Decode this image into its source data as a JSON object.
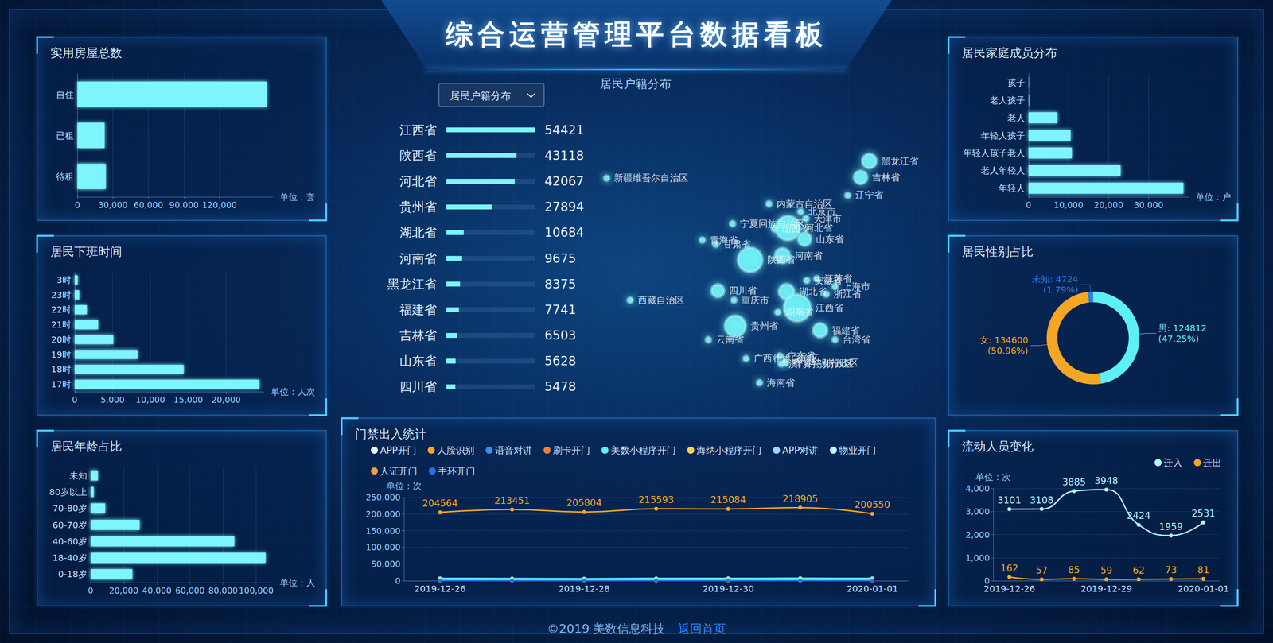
{
  "page": {
    "title": "综合运营管理平台数据看板",
    "dropdown": "居民户籍分布",
    "footer": {
      "copyright": "©2019 美数信息科技",
      "link": "返回首页"
    }
  },
  "chart_data": [
    {
      "type": "bar",
      "title": "实用房屋总数",
      "orientation": "horizontal",
      "categories": [
        "自住",
        "已租",
        "待租"
      ],
      "values": [
        160000,
        23000,
        24000
      ],
      "color": "#7ef4fb",
      "xlim": [
        0,
        165000
      ],
      "xticks": [
        0,
        {
          "value": 30000,
          "label": "30,000"
        },
        {
          "value": 60000,
          "label": "60,000"
        },
        {
          "value": 90000,
          "label": "90,000"
        },
        {
          "value": 120000,
          "label": "120,000"
        }
      ],
      "x_label": "单位：套",
      "grid": true
    },
    {
      "type": "bar",
      "title": "居民下班时间",
      "orientation": "horizontal",
      "categories": [
        "3时",
        "23时",
        "22时",
        "21时",
        "20时",
        "19时",
        "18时",
        "17时"
      ],
      "values": [
        400,
        600,
        1600,
        3100,
        5100,
        8300,
        14400,
        24400
      ],
      "color": "#7ef4fb",
      "xlim": [
        0,
        25000
      ],
      "xticks": [
        0,
        {
          "value": 5000,
          "label": "5,000"
        },
        {
          "value": 10000,
          "label": "10,000"
        },
        {
          "value": 15000,
          "label": "15,000"
        },
        {
          "value": 20000,
          "label": "20,000"
        }
      ],
      "x_label": "单位：人次",
      "grid": true
    },
    {
      "type": "bar",
      "title": "居民年龄占比",
      "orientation": "horizontal",
      "categories": [
        "未知",
        "80岁以上",
        "70-80岁",
        "60-70岁",
        "40-60岁",
        "18-40岁",
        "0-18岁"
      ],
      "values": [
        4400,
        1900,
        8800,
        29600,
        86800,
        105700,
        25200
      ],
      "color": "#7ef4fb",
      "xlim": [
        0,
        110000
      ],
      "xticks": [
        0,
        {
          "value": 20000,
          "label": "20,000"
        },
        {
          "value": 40000,
          "label": "40,000"
        },
        {
          "value": 60000,
          "label": "60,000"
        },
        {
          "value": 80000,
          "label": "80,000"
        },
        {
          "value": 100000,
          "label": "100,000"
        }
      ],
      "x_label": "单位：人",
      "grid": true
    },
    {
      "type": "bar",
      "orientation": "horizontal",
      "categories": [
        "江西省",
        "陕西省",
        "河北省",
        "贵州省",
        "湖北省",
        "河南省",
        "黑龙江省",
        "福建省",
        "吉林省",
        "山东省",
        "四川省"
      ],
      "values": [
        54421,
        43118,
        42067,
        27894,
        10684,
        9675,
        8375,
        7741,
        6503,
        5628,
        5478
      ],
      "color": "#7ef4fb",
      "xlim": [
        0,
        54421
      ],
      "data_labels": true,
      "tick_labels": "y"
    },
    {
      "type": "scatter",
      "title": "居民户籍分布",
      "xlim": [
        73,
        136
      ],
      "ylim": [
        17,
        54
      ],
      "tick_labels": false,
      "color": "#6ff0f5",
      "points": [
        {
          "name": "新疆维吾尔自治区",
          "lon": 87.6,
          "lat": 43.8
        },
        {
          "name": "西藏自治区",
          "lon": 91.1,
          "lat": 29.6
        },
        {
          "name": "青海省",
          "lon": 101.8,
          "lat": 36.6
        },
        {
          "name": "甘肃省",
          "lon": 103.8,
          "lat": 36.1
        },
        {
          "name": "宁夏回族自治区",
          "lon": 106.3,
          "lat": 38.5
        },
        {
          "name": "内蒙古自治区",
          "lon": 111.7,
          "lat": 40.8
        },
        {
          "name": "黑龙江省",
          "lon": 126.6,
          "lat": 45.8
        },
        {
          "name": "吉林省",
          "lon": 125.3,
          "lat": 43.9
        },
        {
          "name": "辽宁省",
          "lon": 123.4,
          "lat": 41.8
        },
        {
          "name": "北京市",
          "lon": 116.4,
          "lat": 39.9
        },
        {
          "name": "天津市",
          "lon": 117.2,
          "lat": 39.1
        },
        {
          "name": "河北省",
          "lon": 114.5,
          "lat": 38.0
        },
        {
          "name": "山西省",
          "lon": 112.5,
          "lat": 37.9
        },
        {
          "name": "山东省",
          "lon": 117.0,
          "lat": 36.7
        },
        {
          "name": "陕西省",
          "lon": 108.9,
          "lat": 34.3
        },
        {
          "name": "河南省",
          "lon": 113.7,
          "lat": 34.8
        },
        {
          "name": "安徽省",
          "lon": 117.3,
          "lat": 31.9
        },
        {
          "name": "江苏省",
          "lon": 118.8,
          "lat": 32.1
        },
        {
          "name": "上海市",
          "lon": 121.5,
          "lat": 31.2
        },
        {
          "name": "浙江省",
          "lon": 120.2,
          "lat": 30.3
        },
        {
          "name": "湖北省",
          "lon": 114.3,
          "lat": 30.6
        },
        {
          "name": "四川省",
          "lon": 104.1,
          "lat": 30.7
        },
        {
          "name": "重庆市",
          "lon": 106.5,
          "lat": 29.6
        },
        {
          "name": "江西省",
          "lon": 115.9,
          "lat": 28.7
        },
        {
          "name": "湖南省",
          "lon": 113.0,
          "lat": 28.2
        },
        {
          "name": "贵州省",
          "lon": 106.7,
          "lat": 26.6
        },
        {
          "name": "云南省",
          "lon": 102.7,
          "lat": 25.0
        },
        {
          "name": "福建省",
          "lon": 119.3,
          "lat": 26.1
        },
        {
          "name": "台湾省",
          "lon": 121.5,
          "lat": 25.0
        },
        {
          "name": "广西壮族自治区",
          "lon": 108.3,
          "lat": 22.8
        },
        {
          "name": "广东省",
          "lon": 113.3,
          "lat": 23.1
        },
        {
          "name": "香港特别行政区",
          "lon": 114.2,
          "lat": 22.3
        },
        {
          "name": "澳门特别行政区",
          "lon": 113.5,
          "lat": 22.2
        },
        {
          "name": "海南省",
          "lon": 110.3,
          "lat": 20.0
        }
      ]
    },
    {
      "type": "line",
      "title": "门禁出入统计",
      "categories": [
        "2019-12-26",
        null,
        "2019-12-28",
        null,
        "2019-12-30",
        null,
        "2020-01-01"
      ],
      "ylim": [
        0,
        250000
      ],
      "yticks": [
        0,
        {
          "value": 50000,
          "label": "50,000"
        },
        {
          "value": 100000,
          "label": "100,000"
        },
        {
          "value": 150000,
          "label": "150,000"
        },
        {
          "value": 200000,
          "label": "200,000"
        },
        {
          "value": 250000,
          "label": "250,000"
        }
      ],
      "y_label": "单位：次",
      "grid": true,
      "legend": "top-left",
      "marker": "circle",
      "series": [
        {
          "name": "APP开门",
          "color": "#e8f6ff",
          "values": [
            7021,
            6555,
            6059,
            6913,
            7206,
            7510,
            7102
          ]
        },
        {
          "name": "人脸识别",
          "color": "#f5a623",
          "values": [
            204564,
            213451,
            205804,
            215593,
            215084,
            218905,
            200550
          ],
          "data_labels": true
        },
        {
          "name": "语音对讲",
          "color": "#3a8ee6",
          "values": [
            512,
            486,
            530,
            498,
            505,
            521,
            477
          ]
        },
        {
          "name": "刷卡开门",
          "color": "#f27d3b",
          "values": [
            6120,
            5830,
            5650,
            6010,
            6280,
            6420,
            5980
          ]
        },
        {
          "name": "美数小程序开门",
          "color": "#5ef0f7",
          "values": [
            6890,
            6420,
            6310,
            6810,
            7030,
            7280,
            6950
          ]
        },
        {
          "name": "海纳小程序开门",
          "color": "#f7d154",
          "values": [
            3210,
            3050,
            2980,
            3150,
            3260,
            3390,
            3120
          ]
        },
        {
          "name": "APP对讲",
          "color": "#9fd4ff",
          "values": [
            820,
            790,
            760,
            810,
            830,
            850,
            800
          ]
        },
        {
          "name": "物业开门",
          "color": "#bff6ff",
          "values": [
            1250,
            1180,
            1120,
            1230,
            1270,
            1300,
            1210
          ]
        },
        {
          "name": "人证开门",
          "color": "#f0a040",
          "values": [
            310,
            290,
            280,
            305,
            320,
            330,
            300
          ]
        },
        {
          "name": "手环开门",
          "color": "#2f6fe0",
          "values": [
            180,
            170,
            160,
            175,
            185,
            190,
            170
          ]
        }
      ]
    },
    {
      "type": "bar",
      "title": "居民家庭成员分布",
      "orientation": "horizontal",
      "categories": [
        "孩子",
        "老人孩子",
        "老人",
        "年轻人孩子",
        "年轻人孩子老人",
        "老人年轻人",
        "年轻人"
      ],
      "values": [
        100,
        150,
        7200,
        10500,
        10800,
        23000,
        38700
      ],
      "color": "#7ef4fb",
      "xlim": [
        0,
        40000
      ],
      "xticks": [
        0,
        {
          "value": 10000,
          "label": "10,000"
        },
        {
          "value": 20000,
          "label": "20,000"
        },
        {
          "value": 30000,
          "label": "30,000"
        }
      ],
      "x_label": "单位：户",
      "grid": true
    },
    {
      "type": "pie",
      "title": "居民性别占比",
      "categories": [
        "男",
        "女",
        "未知"
      ],
      "values": [
        124812,
        134600,
        4724
      ],
      "value_labels": [
        "男: 124812\n(47.25%)",
        "女: 134600\n(50.96%)",
        "未知: 4724\n(1.79%)"
      ],
      "colors": [
        "#5ef0f7",
        "#f5a623",
        "#2b7de9"
      ],
      "data_labels": true
    },
    {
      "type": "line",
      "title": "流动人员变化",
      "categories": [
        "2019-12-26",
        null,
        null,
        "2019-12-29",
        null,
        null,
        "2020-01-01"
      ],
      "ylim": [
        0,
        4000
      ],
      "yticks": [
        0,
        {
          "value": 1000,
          "label": "1,000"
        },
        {
          "value": 2000,
          "label": "2,000"
        },
        {
          "value": 3000,
          "label": "3,000"
        },
        {
          "value": 4000,
          "label": "4,000"
        }
      ],
      "y_label": "单位：次",
      "grid": true,
      "legend": "top-right",
      "data_labels": true,
      "marker": "circle",
      "series": [
        {
          "name": "迁入",
          "color": "#aef6ff",
          "values": [
            3101,
            3108,
            3885,
            3948,
            2424,
            1959,
            2531
          ]
        },
        {
          "name": "迁出",
          "color": "#f5a623",
          "values": [
            162,
            57,
            85,
            59,
            62,
            73,
            81
          ]
        }
      ]
    }
  ]
}
